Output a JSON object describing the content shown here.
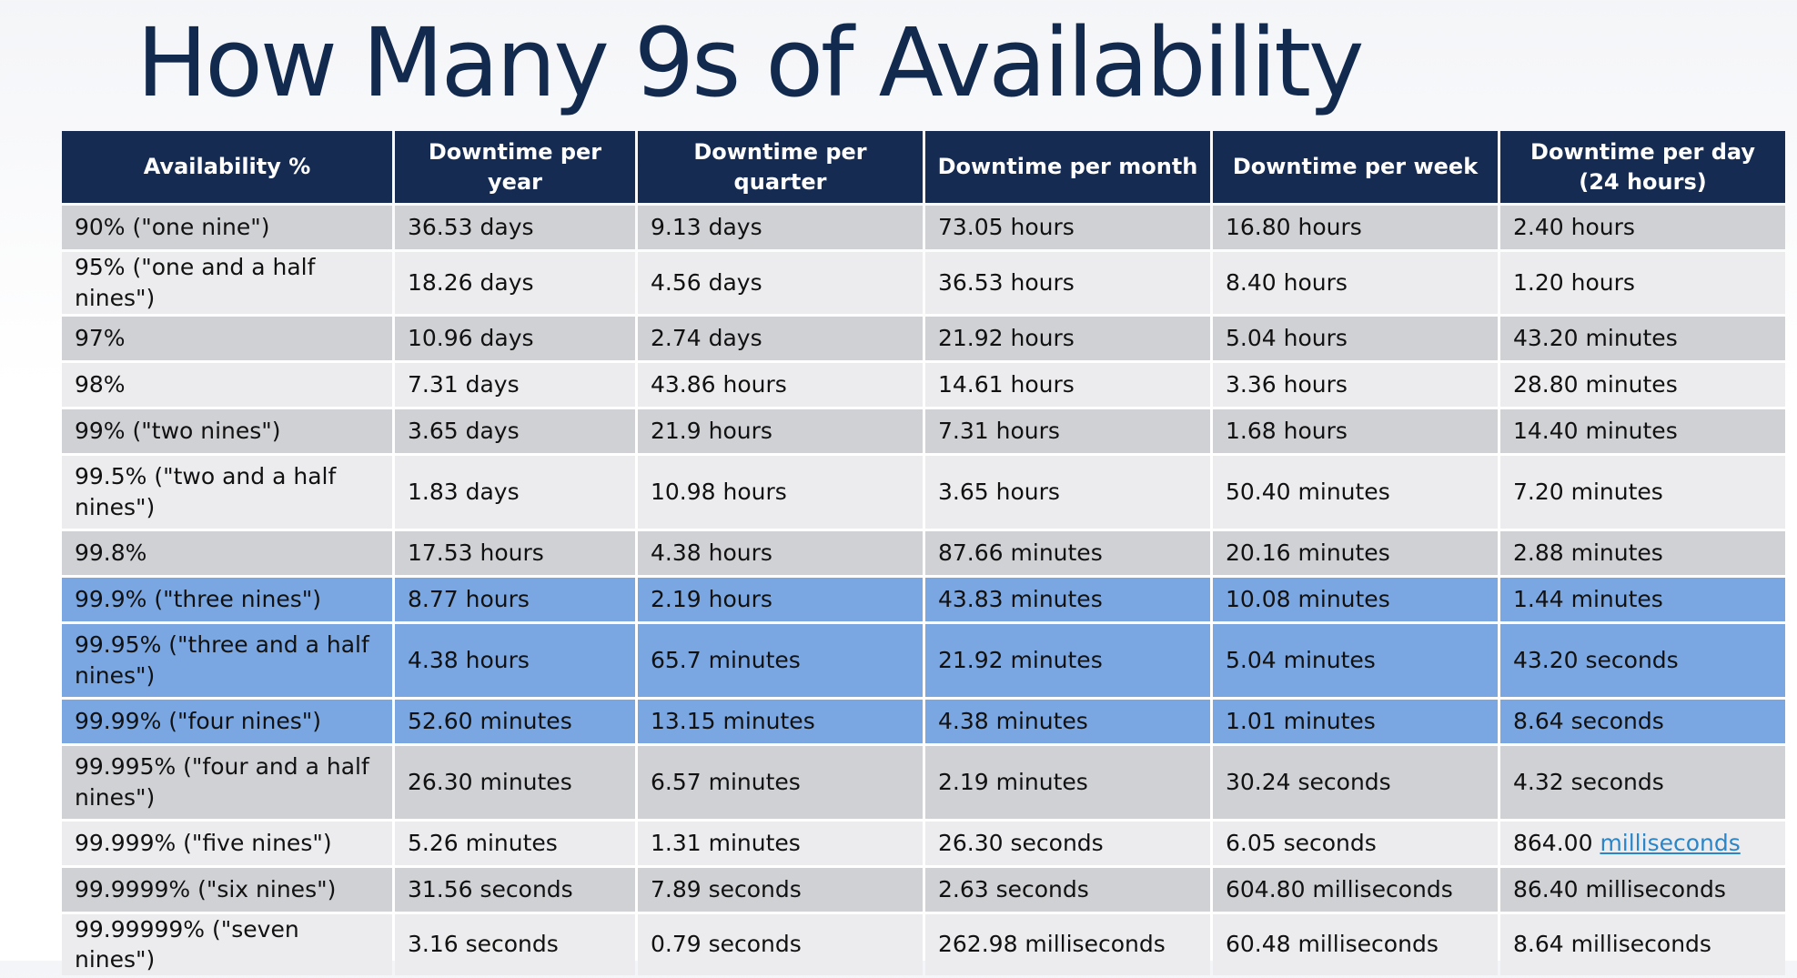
{
  "title": "How Many 9s of Availability",
  "colors": {
    "header_bg": "#152b52",
    "row_odd": "#d0d1d5",
    "row_even": "#ececee",
    "row_highlight": "#7aa7e2",
    "link": "#2a86c8"
  },
  "table": {
    "headers": [
      "Availability %",
      "Downtime per year",
      "Downtime per quarter",
      "Downtime per month",
      "Downtime per week",
      "Downtime per day (24 hours)"
    ],
    "rows": [
      {
        "cells": [
          "90% (\"one nine\")",
          "36.53 days",
          "9.13 days",
          "73.05 hours",
          "16.80 hours",
          "2.40 hours"
        ],
        "highlight": false
      },
      {
        "cells": [
          "95% (\"one and a half nines\")",
          "18.26 days",
          "4.56 days",
          "36.53 hours",
          "8.40 hours",
          "1.20 hours"
        ],
        "highlight": false
      },
      {
        "cells": [
          "97%",
          "10.96 days",
          "2.74 days",
          "21.92 hours",
          "5.04 hours",
          "43.20 minutes"
        ],
        "highlight": false
      },
      {
        "cells": [
          "98%",
          "7.31 days",
          "43.86 hours",
          "14.61 hours",
          "3.36 hours",
          "28.80 minutes"
        ],
        "highlight": false
      },
      {
        "cells": [
          "99% (\"two nines\")",
          "3.65 days",
          "21.9 hours",
          "7.31 hours",
          "1.68 hours",
          "14.40 minutes"
        ],
        "highlight": false
      },
      {
        "cells": [
          "99.5% (\"two and a half nines\")",
          "1.83 days",
          "10.98 hours",
          "3.65 hours",
          "50.40 minutes",
          "7.20 minutes"
        ],
        "highlight": false
      },
      {
        "cells": [
          "99.8%",
          "17.53 hours",
          "4.38 hours",
          "87.66 minutes",
          "20.16 minutes",
          "2.88 minutes"
        ],
        "highlight": false
      },
      {
        "cells": [
          "99.9% (\"three nines\")",
          "8.77 hours",
          "2.19 hours",
          "43.83 minutes",
          "10.08 minutes",
          "1.44 minutes"
        ],
        "highlight": true
      },
      {
        "cells": [
          "99.95% (\"three and a half nines\")",
          "4.38 hours",
          "65.7 minutes",
          "21.92 minutes",
          "5.04 minutes",
          "43.20 seconds"
        ],
        "highlight": true
      },
      {
        "cells": [
          "99.99% (\"four nines\")",
          "52.60 minutes",
          "13.15 minutes",
          "4.38 minutes",
          "1.01 minutes",
          "8.64 seconds"
        ],
        "highlight": true
      },
      {
        "cells": [
          "99.995% (\"four and a half nines\")",
          "26.30 minutes",
          "6.57 minutes",
          "2.19 minutes",
          "30.24 seconds",
          "4.32 seconds"
        ],
        "highlight": false
      },
      {
        "cells": [
          "99.999% (\"five nines\")",
          "5.26 minutes",
          "1.31 minutes",
          "26.30 seconds",
          "6.05 seconds",
          "864.00 milliseconds"
        ],
        "highlight": false
      },
      {
        "cells": [
          "99.9999% (\"six nines\")",
          "31.56 seconds",
          "7.89 seconds",
          "2.63 seconds",
          "604.80 milliseconds",
          "86.40 milliseconds"
        ],
        "highlight": false
      },
      {
        "cells": [
          "99.99999% (\"seven nines\")",
          "3.16 seconds",
          "0.79 seconds",
          "262.98 milliseconds",
          "60.48 milliseconds",
          "8.64 milliseconds"
        ],
        "highlight": false
      }
    ],
    "linked_cell": {
      "row": 11,
      "col": 5,
      "prefix": "864.00 ",
      "link_text": "milliseconds"
    }
  }
}
